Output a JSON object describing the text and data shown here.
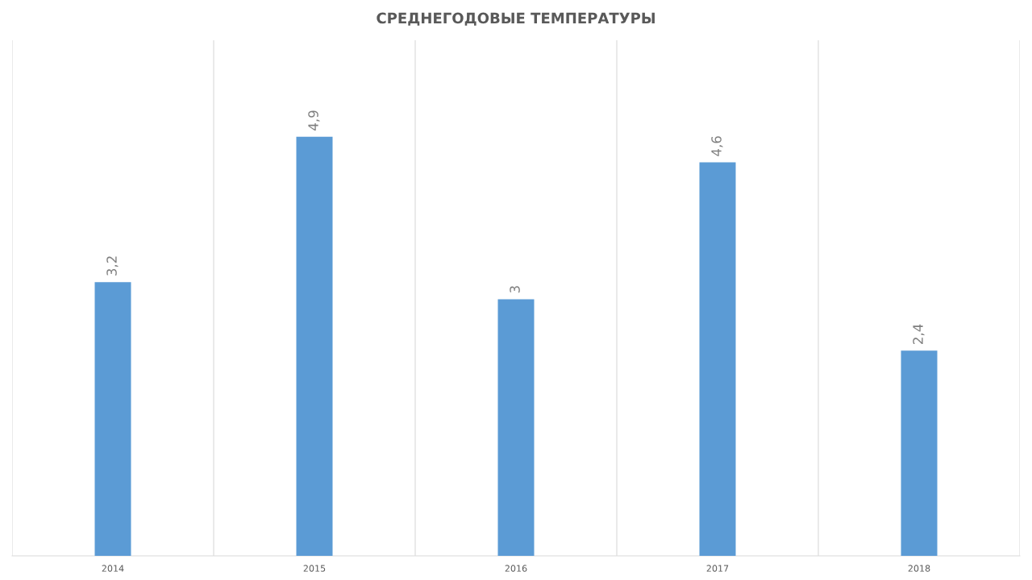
{
  "chart_data": {
    "type": "bar",
    "title": "СРЕДНЕГОДОВЫЕ ТЕМПЕРАТУРЫ",
    "categories": [
      "2014",
      "2015",
      "2016",
      "2017",
      "2018"
    ],
    "values": [
      3.2,
      4.9,
      3,
      4.6,
      2.4
    ],
    "value_labels": [
      "3,2",
      "4,9",
      "3",
      "4,6",
      "2,4"
    ],
    "color": "#5b9bd5",
    "tick_labels": "x",
    "grid": "x"
  }
}
